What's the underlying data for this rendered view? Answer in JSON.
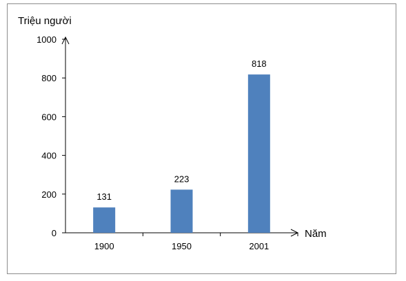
{
  "chart_data": {
    "type": "bar",
    "title": "",
    "ylabel": "Triệu người",
    "xlabel": "Năm",
    "categories": [
      "1900",
      "1950",
      "2001"
    ],
    "values": [
      131,
      223,
      818
    ],
    "data_labels": [
      "131",
      "223",
      "818"
    ],
    "yticks": [
      "0",
      "200",
      "400",
      "600",
      "800",
      "1000"
    ],
    "ylim": [
      0,
      1000
    ],
    "bar_color": "#4f81bd",
    "grid": false,
    "legend": "none"
  }
}
